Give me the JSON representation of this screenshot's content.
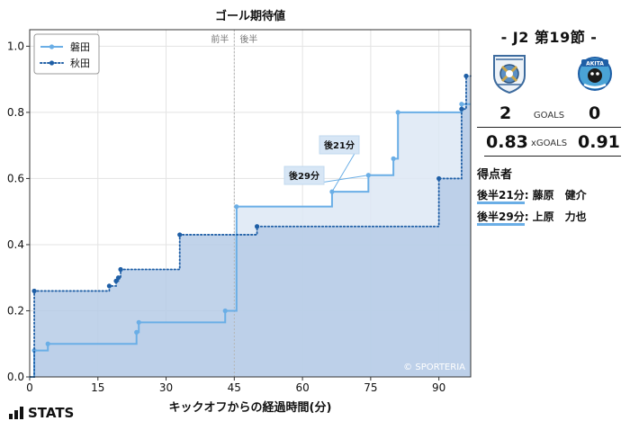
{
  "chart_data": {
    "type": "line",
    "title": "ゴール期待値",
    "xlabel": "キックオフからの経過時間(分)",
    "ylabel": "",
    "xlim": [
      0,
      97
    ],
    "ylim": [
      0,
      1.05
    ],
    "x_ticks": [
      "0",
      "15",
      "30",
      "45",
      "60",
      "75",
      "90"
    ],
    "y_ticks": [
      "0.0",
      "0.2",
      "0.4",
      "0.6",
      "0.8",
      "1.0"
    ],
    "grid": true,
    "legend_position": "top-left",
    "halftime_labels": [
      "前半",
      "後半"
    ],
    "watermark": "© SPORTERIA",
    "series": [
      {
        "name": "磐田",
        "color": "#6aaee6",
        "fill": "#dde8f5",
        "style": "solid",
        "x": [
          0,
          1,
          4,
          23.5,
          24,
          43,
          45.5,
          66.5,
          74.5,
          80,
          81,
          95,
          97
        ],
        "y": [
          0,
          0.08,
          0.1,
          0.135,
          0.165,
          0.2,
          0.515,
          0.56,
          0.61,
          0.66,
          0.8,
          0.825,
          0.825
        ]
      },
      {
        "name": "秋田",
        "color": "#1f5fa6",
        "fill": "#b6cbe6",
        "style": "dotted",
        "x": [
          0,
          1,
          17.5,
          19,
          19.5,
          20,
          33,
          50,
          90,
          95,
          96,
          97
        ],
        "y": [
          0,
          0.26,
          0.275,
          0.29,
          0.3,
          0.325,
          0.43,
          0.455,
          0.6,
          0.81,
          0.91,
          0.91
        ]
      }
    ],
    "annotations": [
      {
        "label": "後21分",
        "x": 66.5,
        "y": 0.56
      },
      {
        "label": "後29分",
        "x": 74.5,
        "y": 0.61
      }
    ]
  },
  "match": {
    "title": "- J2 第19節 -",
    "home_goals": "2",
    "away_goals": "0",
    "goals_label": "GOALS",
    "home_xg": "0.83",
    "away_xg": "0.91",
    "xg_label": "xGOALS",
    "away_crest_text": "AKITA",
    "scorers_title": "得点者",
    "scorers": [
      {
        "time": "後半21分",
        "name": ": 藤原　健介"
      },
      {
        "time": "後半29分",
        "name": ": 上原　力也"
      }
    ]
  },
  "brand": "STATS",
  "colors": {
    "home": "#6aaee6",
    "away": "#1f5fa6",
    "scorer_underline": "#6aaee6"
  }
}
